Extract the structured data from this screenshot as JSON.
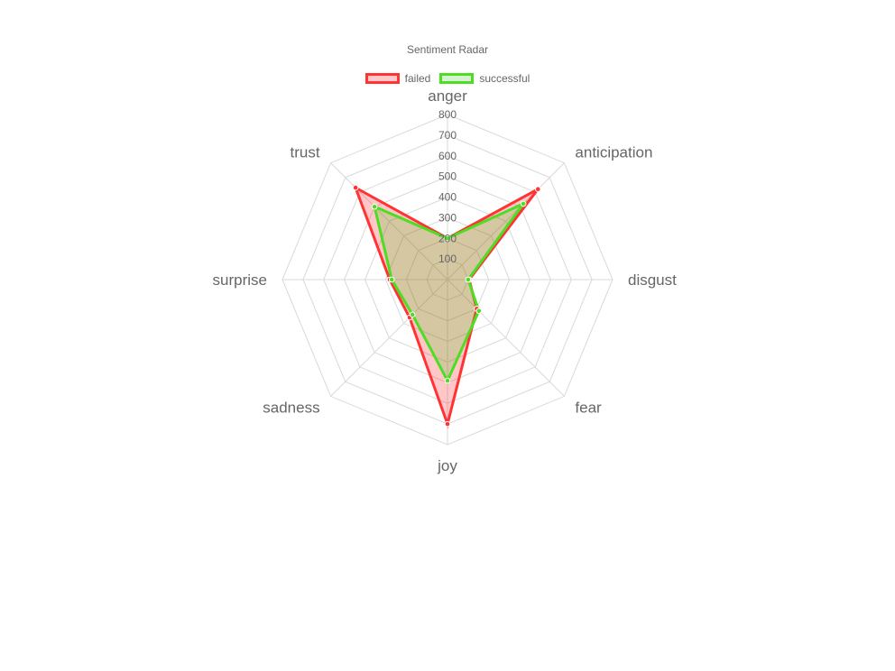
{
  "chart_data": {
    "type": "radar",
    "title": "Sentiment Radar",
    "categories": [
      "anger",
      "anticipation",
      "disgust",
      "fear",
      "joy",
      "sadness",
      "surprise",
      "trust"
    ],
    "ticks": [
      100,
      200,
      300,
      400,
      500,
      600,
      700,
      800
    ],
    "rlim": [
      0,
      800
    ],
    "grid": true,
    "legend_position": "top",
    "series": [
      {
        "name": "failed",
        "values": [
          200,
          620,
          105,
          200,
          700,
          260,
          280,
          630
        ],
        "color": "#ff3333",
        "fill": "rgba(255,0,0,0.22)"
      },
      {
        "name": "successful",
        "values": [
          200,
          520,
          100,
          215,
          490,
          240,
          270,
          500
        ],
        "color": "#4ddd22",
        "fill": "rgba(60,200,30,0.22)"
      }
    ]
  }
}
